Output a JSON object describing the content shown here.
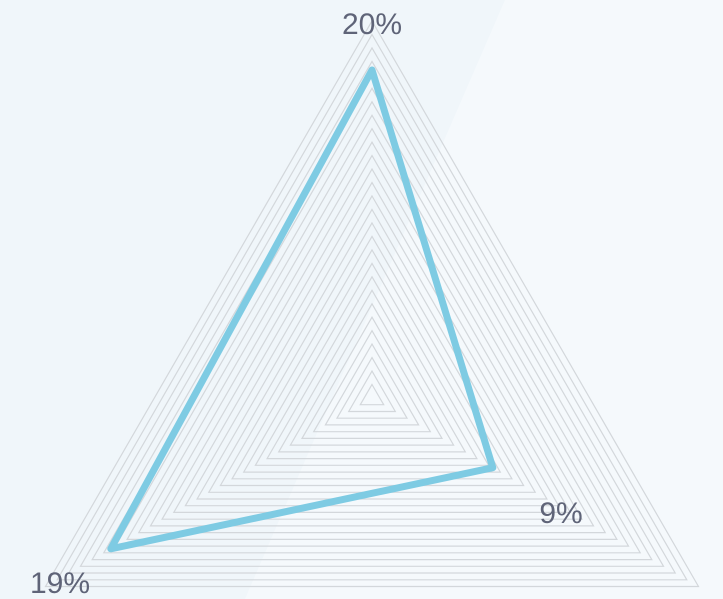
{
  "chart_data": {
    "type": "radar",
    "axes": [
      {
        "label": "20%",
        "value": 0.87
      },
      {
        "label": "9%",
        "value": 0.37
      },
      {
        "label": "19%",
        "value": 0.8
      }
    ],
    "series": [
      {
        "values": [
          0.87,
          0.37,
          0.8
        ]
      }
    ],
    "range": [
      0,
      1
    ],
    "grid_levels": 28,
    "colors": {
      "series": "#7ecbe3",
      "grid": "#d3d7db",
      "background": "#f5f9fc",
      "band": "#f0f6fa",
      "label": "#5f6478"
    }
  }
}
